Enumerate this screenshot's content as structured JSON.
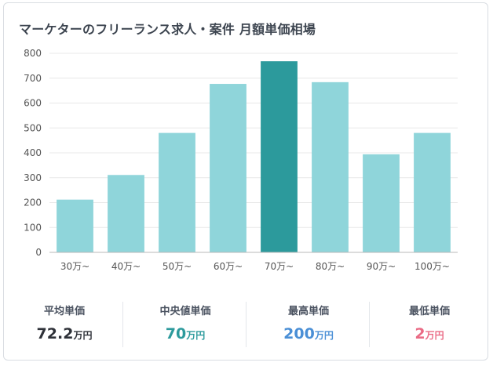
{
  "title": "マーケターのフリーランス求人・案件 月額単価相場",
  "chart_data": {
    "type": "bar",
    "categories": [
      "30万~",
      "40万~",
      "50万~",
      "60万~",
      "70万~",
      "80万~",
      "90万~",
      "100万~"
    ],
    "values": [
      212,
      311,
      480,
      677,
      768,
      684,
      394,
      480
    ],
    "highlight_index": 4,
    "yticks": [
      0,
      100,
      200,
      300,
      400,
      500,
      600,
      700,
      800
    ],
    "ylim": [
      0,
      800
    ],
    "grid": true,
    "colors": {
      "bar": "#8fd5da",
      "highlight": "#2c9a9c",
      "grid": "#e8e8e8",
      "axis": "#b8b8b8",
      "tick_text": "#555555"
    }
  },
  "stats": [
    {
      "label": "平均単価",
      "value": "72.2",
      "unit": "万円",
      "color": "#2e3138"
    },
    {
      "label": "中央値単価",
      "value": "70",
      "unit": "万円",
      "color": "#2c9a9c"
    },
    {
      "label": "最高単価",
      "value": "200",
      "unit": "万円",
      "color": "#4a8fd6"
    },
    {
      "label": "最低単価",
      "value": "2",
      "unit": "万円",
      "color": "#ea6b85"
    }
  ]
}
